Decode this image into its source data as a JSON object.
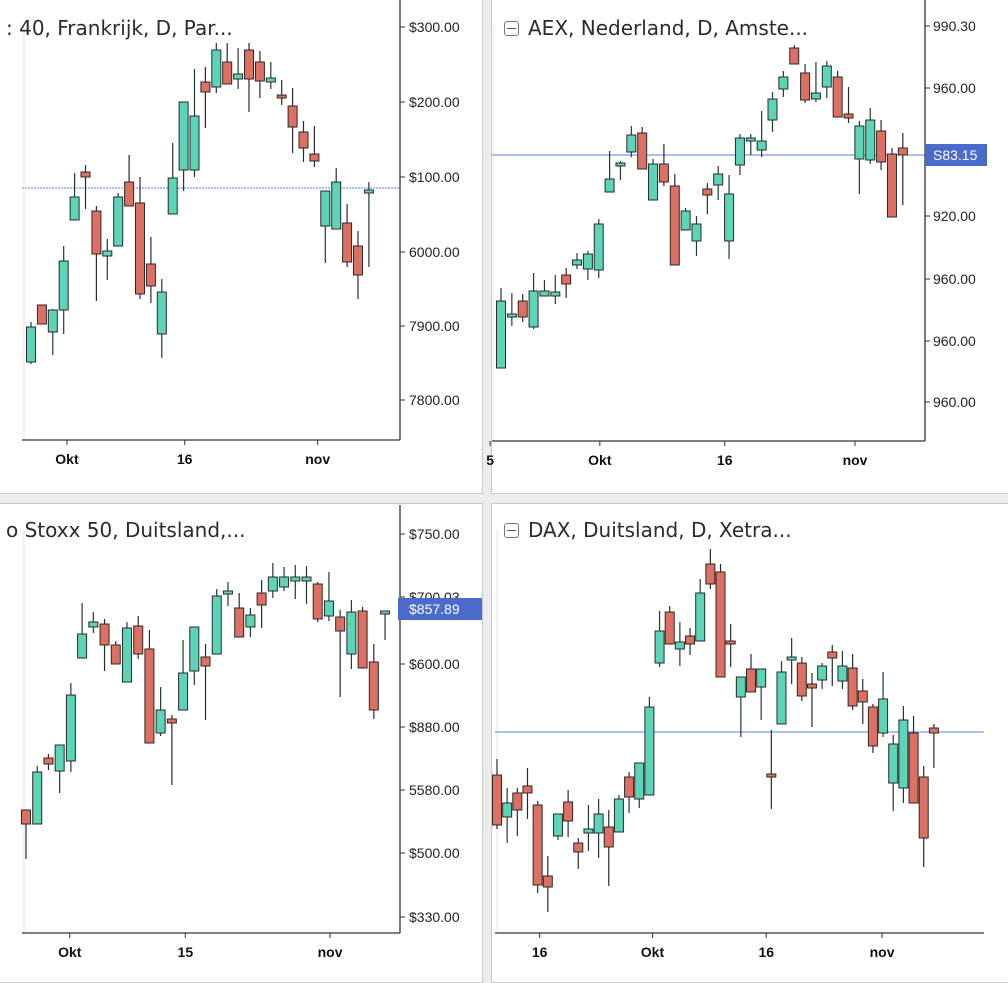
{
  "colors": {
    "up": "#5dd3b8",
    "down": "#de6f63",
    "outline": "#2a2a2a",
    "current_line": "#5b7fe6",
    "price_label_bg": "#4a6bc9"
  },
  "chart_data": [
    {
      "type": "candlestick",
      "title": ": 40, Frankrijk, D, Par...",
      "collapse_icon": false,
      "yticks": [
        {
          "level": 413,
          "label": "$300.00"
        },
        {
          "level": 338,
          "label": "$200.00"
        },
        {
          "level": 263,
          "label": "$100.00"
        },
        {
          "level": 188,
          "label": "6000.00"
        },
        {
          "level": 114,
          "label": "7900.00"
        },
        {
          "level": 40,
          "label": "7800.00"
        }
      ],
      "xticks": [
        {
          "index": 3.3,
          "label": "Okt"
        },
        {
          "index": 14.1,
          "label": "16"
        },
        {
          "index": 26.3,
          "label": "nov"
        }
      ],
      "current_level": 252,
      "current_label": null,
      "candles": [
        [
          78,
          118,
          76,
          113
        ],
        [
          135,
          135,
          116,
          116
        ],
        [
          108,
          131,
          85,
          130
        ],
        [
          130,
          194,
          106,
          179
        ],
        [
          220,
          267,
          220,
          243
        ],
        [
          268,
          275,
          231,
          263
        ],
        [
          229,
          234,
          139,
          186
        ],
        [
          184,
          201,
          160,
          189
        ],
        [
          194,
          247,
          194,
          243
        ],
        [
          258,
          285,
          234,
          234
        ],
        [
          237,
          263,
          141,
          146
        ],
        [
          176,
          203,
          137,
          154
        ],
        [
          106,
          161,
          82,
          148
        ],
        [
          226,
          297,
          226,
          262
        ],
        [
          270,
          338,
          249,
          338
        ],
        [
          270,
          371,
          263,
          324
        ],
        [
          358,
          373,
          312,
          348
        ],
        [
          353,
          397,
          347,
          390
        ],
        [
          378,
          397,
          356,
          356
        ],
        [
          361,
          392,
          351,
          366
        ],
        [
          390,
          397,
          328,
          361
        ],
        [
          378,
          389,
          342,
          359
        ],
        [
          358,
          378,
          351,
          362
        ],
        [
          345,
          360,
          335,
          343
        ],
        [
          334,
          352,
          287,
          313
        ],
        [
          308,
          319,
          278,
          292
        ],
        [
          286,
          314,
          273,
          279
        ],
        [
          214,
          249,
          177,
          249
        ],
        [
          211,
          272,
          211,
          258
        ],
        [
          217,
          236,
          173,
          178
        ],
        [
          194,
          209,
          141,
          165
        ],
        [
          247,
          258,
          173,
          250
        ]
      ]
    },
    {
      "type": "candlestick",
      "title": "AEX, Nederland, D, Amste...",
      "collapse_icon": true,
      "yticks": [
        {
          "level": 415,
          "label": "990.30"
        },
        {
          "level": 353,
          "label": "960.00"
        },
        {
          "level": 225,
          "label": "920.00"
        },
        {
          "level": 162,
          "label": "960.00"
        },
        {
          "level": 100,
          "label": "960.00"
        },
        {
          "level": 39,
          "label": "960.00"
        }
      ],
      "xticks": [
        {
          "index": -1,
          "label": "5"
        },
        {
          "index": 9.1,
          "label": "Okt"
        },
        {
          "index": 20.6,
          "label": "16"
        },
        {
          "index": 32.6,
          "label": "nov"
        }
      ],
      "current_level": 286,
      "current_label": "S83.15",
      "candles": [
        [
          73,
          153,
          73,
          140
        ],
        [
          124,
          148,
          115,
          127
        ],
        [
          140,
          147,
          119,
          124
        ],
        [
          114,
          168,
          112,
          150
        ],
        [
          145,
          161,
          145,
          150
        ],
        [
          145,
          166,
          137,
          149
        ],
        [
          166,
          173,
          143,
          157
        ],
        [
          176,
          188,
          172,
          181
        ],
        [
          172,
          190,
          161,
          187
        ],
        [
          171,
          222,
          163,
          217
        ],
        [
          249,
          290,
          249,
          262
        ],
        [
          276,
          280,
          261,
          278
        ],
        [
          289,
          315,
          284,
          306
        ],
        [
          308,
          314,
          272,
          272
        ],
        [
          241,
          282,
          241,
          277
        ],
        [
          277,
          297,
          255,
          259
        ],
        [
          255,
          267,
          176,
          176
        ],
        [
          211,
          233,
          211,
          230
        ],
        [
          200,
          225,
          185,
          217
        ],
        [
          252,
          258,
          227,
          246
        ],
        [
          256,
          275,
          241,
          267
        ],
        [
          200,
          266,
          182,
          247
        ],
        [
          276,
          307,
          266,
          303
        ],
        [
          302,
          307,
          286,
          303
        ],
        [
          291,
          330,
          284,
          300
        ],
        [
          321,
          349,
          309,
          342
        ],
        [
          352,
          370,
          344,
          364
        ],
        [
          393,
          396,
          377,
          377
        ],
        [
          368,
          377,
          338,
          341
        ],
        [
          342,
          379,
          339,
          348
        ],
        [
          354,
          380,
          343,
          375
        ],
        [
          364,
          370,
          324,
          324
        ],
        [
          327,
          354,
          318,
          323
        ],
        [
          282,
          320,
          247,
          315
        ],
        [
          281,
          333,
          277,
          321
        ],
        [
          310,
          321,
          271,
          279
        ],
        [
          287,
          293,
          224,
          224
        ],
        [
          293,
          308,
          236,
          286
        ]
      ]
    },
    {
      "type": "candlestick",
      "title": "o Stoxx 50, Duitsland,...",
      "collapse_icon": false,
      "yticks": [
        {
          "level": 400,
          "label": "$750.00"
        },
        {
          "level": 337,
          "label": "$700.03"
        },
        {
          "level": 270,
          "label": "$600.00"
        },
        {
          "level": 207,
          "label": "$880.00"
        },
        {
          "level": 144,
          "label": "5580.00"
        },
        {
          "level": 81,
          "label": "$500.00"
        },
        {
          "level": 17,
          "label": "$330.00"
        }
      ],
      "xticks": [
        {
          "index": 3.9,
          "label": "Okt"
        },
        {
          "index": 14.2,
          "label": "15"
        },
        {
          "index": 27.1,
          "label": "nov"
        }
      ],
      "current_level": 325,
      "current_label": "$857.89",
      "candles": [
        [
          124,
          124,
          75,
          110
        ],
        [
          110,
          168,
          110,
          162
        ],
        [
          176,
          180,
          164,
          170
        ],
        [
          163,
          189,
          141,
          189
        ],
        [
          173,
          251,
          162,
          239
        ],
        [
          276,
          331,
          276,
          300
        ],
        [
          307,
          322,
          301,
          312
        ],
        [
          310,
          315,
          263,
          289
        ],
        [
          289,
          293,
          270,
          270
        ],
        [
          252,
          312,
          252,
          306
        ],
        [
          308,
          318,
          275,
          280
        ],
        [
          285,
          304,
          191,
          191
        ],
        [
          201,
          247,
          198,
          224
        ],
        [
          215,
          219,
          149,
          211
        ],
        [
          224,
          294,
          224,
          261
        ],
        [
          263,
          307,
          249,
          307
        ],
        [
          277,
          290,
          214,
          268
        ],
        [
          280,
          345,
          280,
          338
        ],
        [
          340,
          352,
          328,
          343
        ],
        [
          326,
          341,
          297,
          297
        ],
        [
          307,
          326,
          297,
          319
        ],
        [
          341,
          354,
          306,
          329
        ],
        [
          343,
          371,
          336,
          357
        ],
        [
          347,
          367,
          343,
          357
        ],
        [
          353,
          369,
          335,
          357
        ],
        [
          353,
          368,
          330,
          357
        ],
        [
          350,
          352,
          312,
          315
        ],
        [
          318,
          362,
          313,
          333
        ],
        [
          317,
          324,
          237,
          303
        ],
        [
          280,
          334,
          265,
          322
        ],
        [
          323,
          327,
          266,
          266
        ],
        [
          272,
          290,
          215,
          224
        ],
        [
          321,
          323,
          294,
          323
        ]
      ]
    },
    {
      "type": "candlestick",
      "title": "DAX, Duitsland, D, Xetra...",
      "collapse_icon": true,
      "yticks": [],
      "xticks": [
        {
          "index": 4.2,
          "label": "16"
        },
        {
          "index": 15.3,
          "label": "Okt"
        },
        {
          "index": 26.5,
          "label": "16"
        },
        {
          "index": 37.9,
          "label": "nov"
        }
      ],
      "current_level": 202,
      "current_label": null,
      "candles": [
        [
          159,
          175,
          105,
          109
        ],
        [
          117,
          146,
          91,
          131
        ],
        [
          141,
          146,
          98,
          124
        ],
        [
          148,
          166,
          115,
          141
        ],
        [
          129,
          133,
          41,
          49
        ],
        [
          58,
          78,
          22,
          47
        ],
        [
          98,
          120,
          94,
          120
        ],
        [
          132,
          144,
          97,
          113
        ],
        [
          91,
          96,
          65,
          82
        ],
        [
          101,
          129,
          83,
          105
        ],
        [
          101,
          135,
          76,
          120
        ],
        [
          107,
          124,
          48,
          87
        ],
        [
          102,
          139,
          102,
          135
        ],
        [
          157,
          162,
          121,
          137
        ],
        [
          135,
          171,
          126,
          171
        ],
        [
          139,
          237,
          139,
          227
        ],
        [
          271,
          323,
          267,
          303
        ],
        [
          322,
          328,
          290,
          290
        ],
        [
          285,
          312,
          268,
          292
        ],
        [
          298,
          306,
          279,
          290
        ],
        [
          293,
          355,
          293,
          341
        ],
        [
          370,
          385,
          345,
          350
        ],
        [
          362,
          370,
          257,
          257
        ],
        [
          293,
          310,
          267,
          292
        ],
        [
          237,
          257,
          197,
          257
        ],
        [
          265,
          280,
          242,
          242
        ],
        [
          247,
          265,
          214,
          265
        ],
        [
          160,
          204,
          125,
          159
        ],
        [
          210,
          273,
          210,
          262
        ],
        [
          275,
          296,
          250,
          277
        ],
        [
          271,
          277,
          233,
          238
        ],
        [
          250,
          261,
          207,
          246
        ],
        [
          254,
          271,
          245,
          268
        ],
        [
          282,
          289,
          248,
          276
        ],
        [
          253,
          283,
          245,
          268
        ],
        [
          266,
          280,
          224,
          228
        ],
        [
          243,
          255,
          210,
          232
        ],
        [
          227,
          230,
          181,
          188
        ],
        [
          201,
          262,
          197,
          235
        ],
        [
          151,
          199,
          123,
          190
        ],
        [
          146,
          228,
          131,
          214
        ],
        [
          201,
          218,
          131,
          131
        ],
        [
          157,
          168,
          67,
          96
        ],
        [
          206,
          210,
          166,
          201
        ]
      ]
    }
  ]
}
